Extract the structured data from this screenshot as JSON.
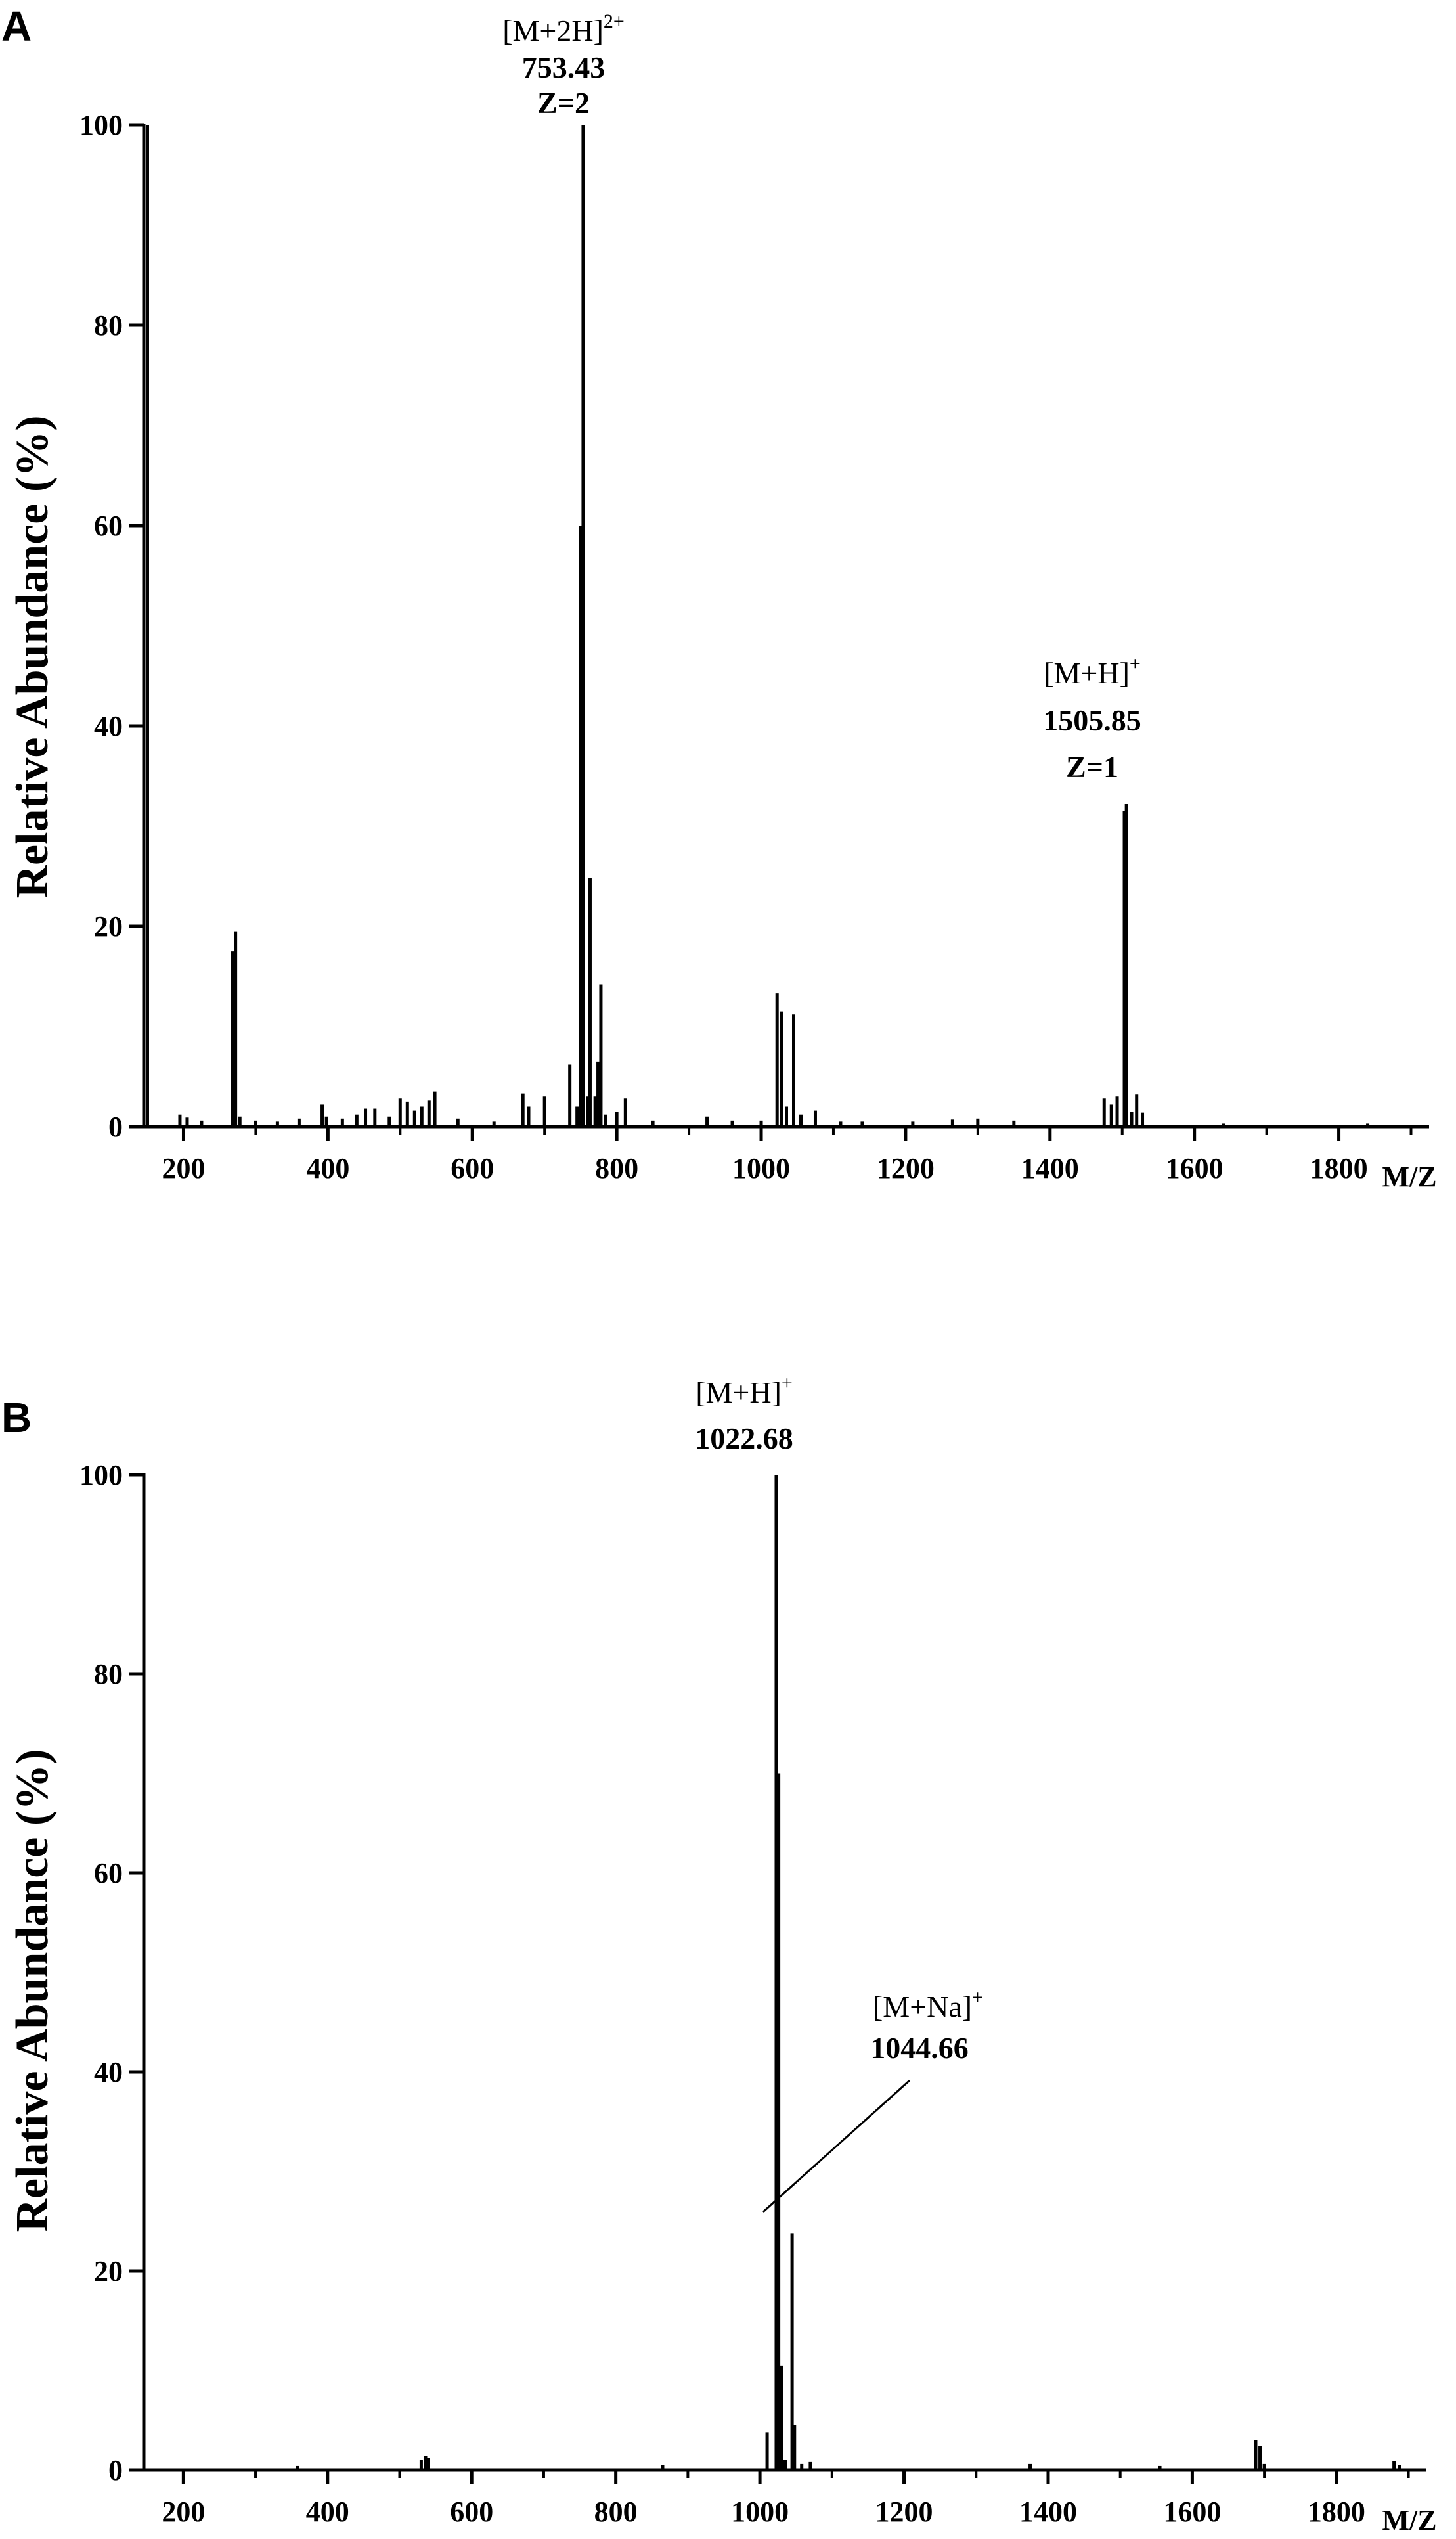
{
  "chart_data": [
    {
      "type": "bar",
      "panel": "A",
      "xlabel": "M/Z",
      "ylabel": "Relative  Abundance  (%)",
      "xlim": [
        145,
        1925
      ],
      "ylim": [
        0,
        100
      ],
      "xticks": [
        200,
        400,
        600,
        800,
        1000,
        1200,
        1400,
        1600,
        1800
      ],
      "yticks": [
        0,
        20,
        40,
        60,
        80,
        100
      ],
      "peaks": [
        {
          "x": 150,
          "y": 100
        },
        {
          "x": 195,
          "y": 1.2
        },
        {
          "x": 205,
          "y": 0.9
        },
        {
          "x": 225,
          "y": 0.6
        },
        {
          "x": 268,
          "y": 17.5
        },
        {
          "x": 272,
          "y": 19.5
        },
        {
          "x": 278,
          "y": 1.0
        },
        {
          "x": 300,
          "y": 0.6
        },
        {
          "x": 330,
          "y": 0.5
        },
        {
          "x": 360,
          "y": 0.8
        },
        {
          "x": 392,
          "y": 2.2
        },
        {
          "x": 398,
          "y": 1.0
        },
        {
          "x": 420,
          "y": 0.8
        },
        {
          "x": 440,
          "y": 1.2
        },
        {
          "x": 452,
          "y": 1.8
        },
        {
          "x": 465,
          "y": 1.8
        },
        {
          "x": 485,
          "y": 1.0
        },
        {
          "x": 500,
          "y": 2.8
        },
        {
          "x": 510,
          "y": 2.5
        },
        {
          "x": 520,
          "y": 1.6
        },
        {
          "x": 530,
          "y": 2.0
        },
        {
          "x": 540,
          "y": 2.6
        },
        {
          "x": 548,
          "y": 3.5
        },
        {
          "x": 580,
          "y": 0.8
        },
        {
          "x": 630,
          "y": 0.5
        },
        {
          "x": 670,
          "y": 3.3
        },
        {
          "x": 678,
          "y": 2.0
        },
        {
          "x": 700,
          "y": 3.0
        },
        {
          "x": 735,
          "y": 6.2
        },
        {
          "x": 745,
          "y": 2.0
        },
        {
          "x": 750,
          "y": 60
        },
        {
          "x": 753.43,
          "y": 100
        },
        {
          "x": 760,
          "y": 3.0
        },
        {
          "x": 763,
          "y": 24.8
        },
        {
          "x": 770,
          "y": 3.0
        },
        {
          "x": 774,
          "y": 6.5
        },
        {
          "x": 778,
          "y": 14.2
        },
        {
          "x": 784,
          "y": 1.2
        },
        {
          "x": 800,
          "y": 1.5
        },
        {
          "x": 812,
          "y": 2.8
        },
        {
          "x": 850,
          "y": 0.6
        },
        {
          "x": 925,
          "y": 1.0
        },
        {
          "x": 960,
          "y": 0.6
        },
        {
          "x": 1000,
          "y": 0.6
        },
        {
          "x": 1022,
          "y": 13.3
        },
        {
          "x": 1028,
          "y": 11.5
        },
        {
          "x": 1035,
          "y": 2.0
        },
        {
          "x": 1045,
          "y": 11.2
        },
        {
          "x": 1055,
          "y": 1.2
        },
        {
          "x": 1075,
          "y": 1.6
        },
        {
          "x": 1110,
          "y": 0.5
        },
        {
          "x": 1140,
          "y": 0.5
        },
        {
          "x": 1210,
          "y": 0.5
        },
        {
          "x": 1265,
          "y": 0.7
        },
        {
          "x": 1300,
          "y": 0.8
        },
        {
          "x": 1350,
          "y": 0.6
        },
        {
          "x": 1475,
          "y": 2.8
        },
        {
          "x": 1485,
          "y": 2.2
        },
        {
          "x": 1493,
          "y": 3.0
        },
        {
          "x": 1503,
          "y": 31.5
        },
        {
          "x": 1505.85,
          "y": 32.2
        },
        {
          "x": 1513,
          "y": 1.5
        },
        {
          "x": 1520,
          "y": 3.2
        },
        {
          "x": 1528,
          "y": 1.4
        },
        {
          "x": 1640,
          "y": 0.3
        },
        {
          "x": 1840,
          "y": 0.3
        }
      ],
      "annotations": [
        {
          "label": "[M+2H]",
          "sup": "2+",
          "value": "753.43",
          "z": "Z=2",
          "x": 753.43
        },
        {
          "label": "[M+H]",
          "sup": "+",
          "value": "1505.85",
          "z": "Z=1",
          "x": 1505.85
        }
      ]
    },
    {
      "type": "bar",
      "panel": "B",
      "xlabel": "M/Z",
      "ylabel": "Relative  Abundance  (%)",
      "xlim": [
        145,
        1925
      ],
      "ylim": [
        0,
        100
      ],
      "xticks": [
        200,
        400,
        600,
        800,
        1000,
        1200,
        1400,
        1600,
        1800
      ],
      "yticks": [
        0,
        20,
        40,
        60,
        80,
        100
      ],
      "peaks": [
        {
          "x": 358,
          "y": 0.4
        },
        {
          "x": 530,
          "y": 1.0
        },
        {
          "x": 536,
          "y": 1.4
        },
        {
          "x": 540,
          "y": 1.2
        },
        {
          "x": 865,
          "y": 0.5
        },
        {
          "x": 1010,
          "y": 3.8
        },
        {
          "x": 1022.68,
          "y": 100
        },
        {
          "x": 1026,
          "y": 70
        },
        {
          "x": 1030,
          "y": 10.5
        },
        {
          "x": 1035,
          "y": 1.0
        },
        {
          "x": 1044.66,
          "y": 23.8
        },
        {
          "x": 1048,
          "y": 4.5
        },
        {
          "x": 1058,
          "y": 0.6
        },
        {
          "x": 1070,
          "y": 0.8
        },
        {
          "x": 1375,
          "y": 0.6
        },
        {
          "x": 1555,
          "y": 0.4
        },
        {
          "x": 1688,
          "y": 3.0
        },
        {
          "x": 1694,
          "y": 2.4
        },
        {
          "x": 1700,
          "y": 0.6
        },
        {
          "x": 1880,
          "y": 0.9
        },
        {
          "x": 1888,
          "y": 0.5
        }
      ],
      "annotations": [
        {
          "label": "[M+H]",
          "sup": "+",
          "value": "1022.68",
          "x": 1022.68
        },
        {
          "label": "[M+Na]",
          "sup": "+",
          "value": "1044.66",
          "x": 1044.66
        }
      ]
    }
  ]
}
